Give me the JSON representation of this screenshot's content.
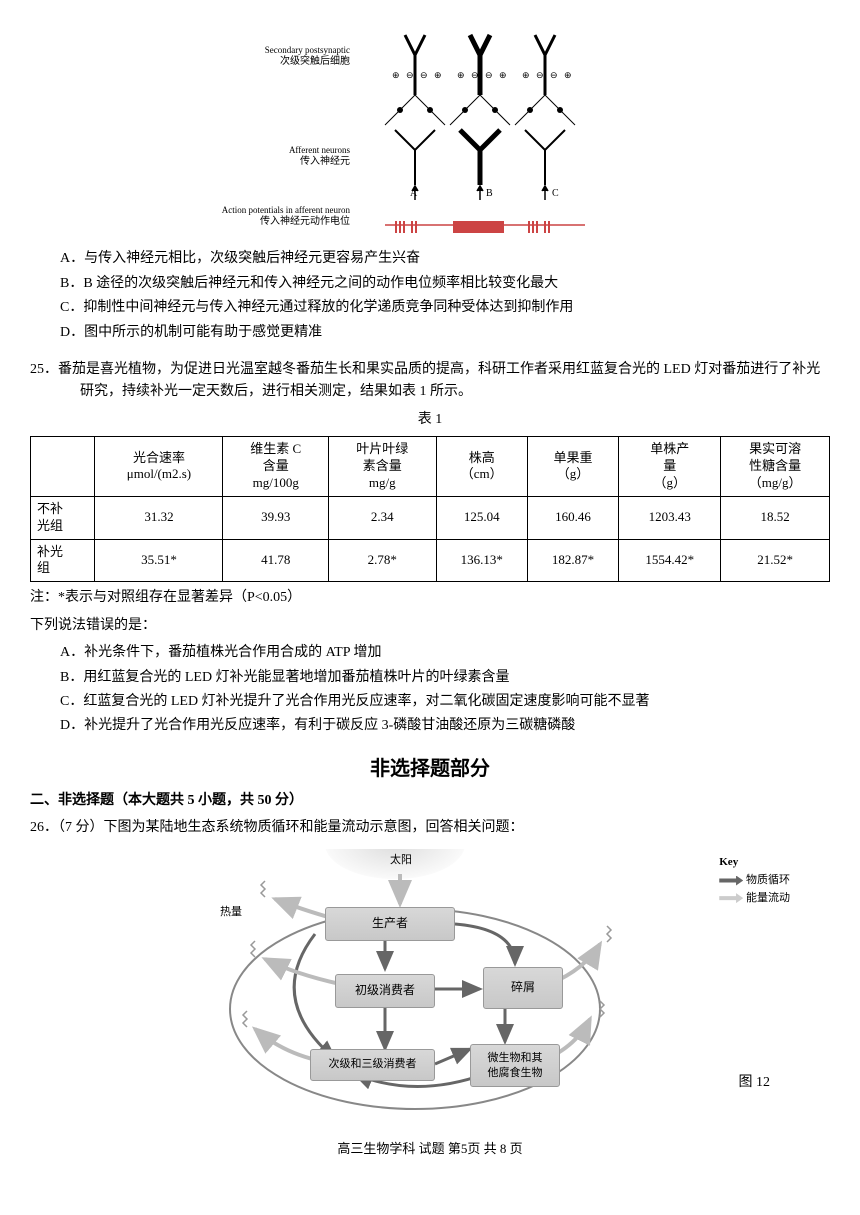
{
  "diagram_labels": {
    "secondary_en": "Secondary postsynaptic",
    "secondary_cn": "次级突触后细胞",
    "afferent_en": "Afferent neurons",
    "afferent_cn": "传入神经元",
    "action_en": "Action potentials in afferent neuron",
    "action_cn": "传入神经元动作电位",
    "path_a": "A",
    "path_b": "B",
    "path_c": "C"
  },
  "q24_options": {
    "a": "A．与传入神经元相比，次级突触后神经元更容易产生兴奋",
    "b": "B．B 途径的次级突触后神经元和传入神经元之间的动作电位频率相比较变化最大",
    "c": "C．抑制性中间神经元与传入神经元通过释放的化学递质竞争同种受体达到抑制作用",
    "d": "D．图中所示的机制可能有助于感觉更精准"
  },
  "q25": {
    "stem": "25．番茄是喜光植物，为促进日光温室越冬番茄生长和果实品质的提高，科研工作者采用红蓝复合光的 LED 灯对番茄进行了补光研究，持续补光一定天数后，进行相关测定，结果如表 1 所示。",
    "table_caption": "表 1",
    "headers": [
      "",
      "光合速率\nμmol/(m2.s)",
      "维生素 C\n含量\nmg/100g",
      "叶片叶绿\n素含量\nmg/g",
      "株高\n（cm）",
      "单果重\n（g）",
      "单株产\n量\n（g）",
      "果实可溶\n性糖含量\n（mg/g）"
    ],
    "rows": [
      [
        "不补\n光组",
        "31.32",
        "39.93",
        "2.34",
        "125.04",
        "160.46",
        "1203.43",
        "18.52"
      ],
      [
        "补光\n组",
        "35.51*",
        "41.78",
        "2.78*",
        "136.13*",
        "182.87*",
        "1554.42*",
        "21.52*"
      ]
    ],
    "note": "注：*表示与对照组存在显著差异（P<0.05）",
    "prompt": "下列说法错误的是：",
    "options": {
      "a": "A．补光条件下，番茄植株光合作用合成的 ATP 增加",
      "b": "B．用红蓝复合光的 LED 灯补光能显著地增加番茄植株叶片的叶绿素含量",
      "c": "C．红蓝复合光的 LED 灯补光提升了光合作用光反应速率，对二氧化碳固定速度影响可能不显著",
      "d": "D．补光提升了光合作用光反应速率，有利于碳反应 3-磷酸甘油酸还原为三碳糖磷酸"
    }
  },
  "section_title": "非选择题部分",
  "part2_intro": "二、非选择题（本大题共 5 小题，共 50 分）",
  "q26": {
    "stem": "26．（7 分）下图为某陆地生态系统物质循环和能量流动示意图，回答相关问题：",
    "figure_caption": "图 12"
  },
  "ecosystem": {
    "sun": "太阳",
    "heat": "热量",
    "producer": "生产者",
    "primary": "初级消费者",
    "detritus": "碎屑",
    "secondary": "次级和三级消费者",
    "decomposer": "微生物和其\n他腐食生物",
    "key_title": "Key",
    "key_matter": "物质循环",
    "key_energy": "能量流动"
  },
  "footer": "高三生物学科 试题 第5页 共 8 页"
}
